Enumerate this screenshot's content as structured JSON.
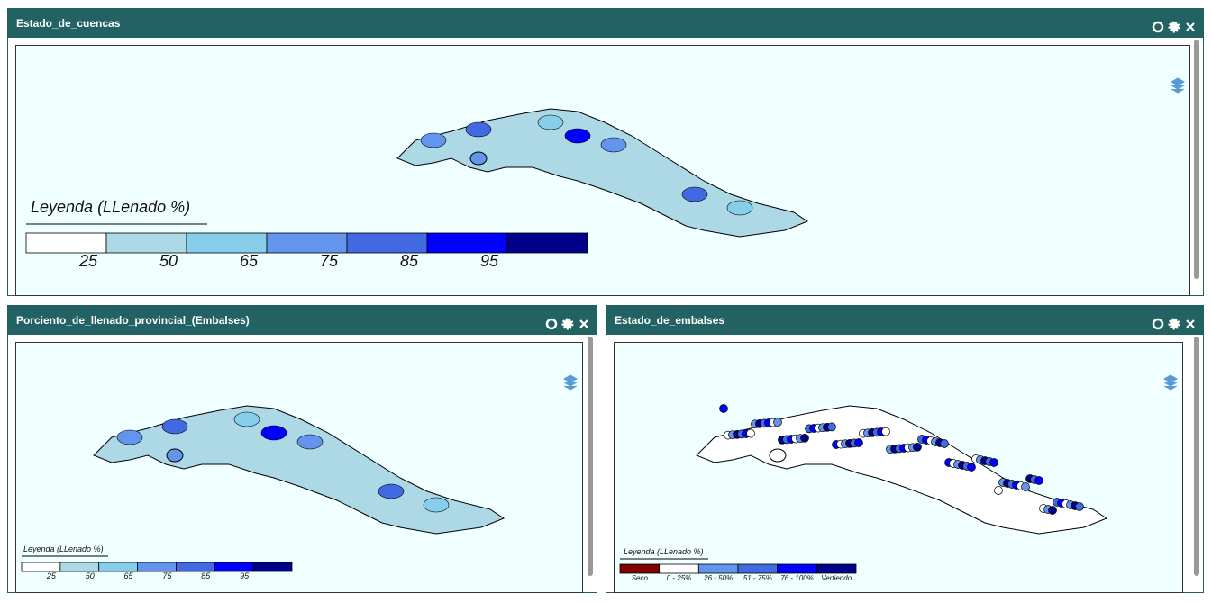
{
  "panels": [
    {
      "title": "Estado_de_cuencas",
      "legend": {
        "title": "Leyenda (LLenado %)",
        "colors": [
          "#ffffff",
          "#add8e6",
          "#87ceeb",
          "#6495ed",
          "#4169e1",
          "#0000ff",
          "#00008b"
        ],
        "labels": [
          25,
          50,
          65,
          75,
          85,
          95
        ]
      }
    },
    {
      "title": "Porciento_de_llenado_provincial_(Embalses)",
      "legend": {
        "title": "Leyenda (LLenado %)",
        "colors": [
          "#ffffff",
          "#add8e6",
          "#87ceeb",
          "#6495ed",
          "#4169e1",
          "#0000ff",
          "#00008b"
        ],
        "labels": [
          25,
          50,
          65,
          75,
          85,
          95
        ]
      }
    },
    {
      "title": "Estado_de_embalses",
      "legend": {
        "title": "Leyenda (LLenado %)",
        "colors": [
          "#800000",
          "#ffffff",
          "#6495ed",
          "#4169e1",
          "#0000ff",
          "#00008b"
        ],
        "labels": [
          "Seco",
          "0 - 25%",
          "26 - 50%",
          "51 - 75%",
          "76 - 100%",
          "Vertiendo"
        ]
      }
    }
  ]
}
